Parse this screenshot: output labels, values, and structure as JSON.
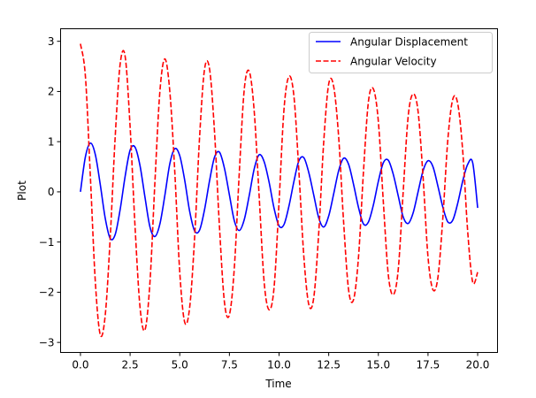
{
  "chart_data": {
    "type": "line",
    "xlabel": "Time",
    "ylabel": "Plot",
    "xlim": [
      -1.0,
      21.0
    ],
    "ylim": [
      -3.2,
      3.25
    ],
    "xticks": [
      0.0,
      2.5,
      5.0,
      7.5,
      10.0,
      12.5,
      15.0,
      17.5,
      20.0
    ],
    "xtick_labels": [
      "0.0",
      "2.5",
      "5.0",
      "7.5",
      "10.0",
      "12.5",
      "15.0",
      "17.5",
      "20.0"
    ],
    "yticks": [
      -3,
      -2,
      -1,
      0,
      1,
      2,
      3
    ],
    "ytick_labels": [
      "−3",
      "−2",
      "−1",
      "0",
      "1",
      "2",
      "3"
    ],
    "grid": false,
    "legend_position": "top-right",
    "series": [
      {
        "name": "Angular Displacement",
        "color": "#0000ff",
        "style": "solid",
        "x": [
          0.0,
          0.25,
          0.5,
          0.75,
          1.0,
          1.25,
          1.5,
          1.75,
          2.0,
          2.25,
          2.5,
          2.75,
          3.0,
          3.25,
          3.5,
          3.75,
          4.0,
          4.25,
          4.5,
          4.75,
          5.0,
          5.25,
          5.5,
          5.75,
          6.0,
          6.25,
          6.5,
          6.75,
          7.0,
          7.25,
          7.5,
          7.75,
          8.0,
          8.25,
          8.5,
          8.75,
          9.0,
          9.25,
          9.5,
          9.75,
          10.0,
          10.25,
          10.5,
          10.75,
          11.0,
          11.25,
          11.5,
          11.75,
          12.0,
          12.25,
          12.5,
          12.75,
          13.0,
          13.25,
          13.5,
          13.75,
          14.0,
          14.25,
          14.5,
          14.75,
          15.0,
          15.25,
          15.5,
          15.75,
          16.0,
          16.25,
          16.5,
          16.75,
          17.0,
          17.25,
          17.5,
          17.75,
          18.0,
          18.25,
          18.5,
          18.75,
          19.0,
          19.25,
          19.5,
          19.75,
          20.0
        ],
        "y": [
          0.0,
          0.7,
          0.97,
          0.74,
          0.14,
          -0.53,
          -0.93,
          -0.85,
          -0.35,
          0.31,
          0.83,
          0.89,
          0.52,
          -0.11,
          -0.7,
          -0.89,
          -0.64,
          -0.07,
          0.56,
          0.86,
          0.72,
          0.23,
          -0.39,
          -0.78,
          -0.76,
          -0.35,
          0.22,
          0.69,
          0.79,
          0.47,
          -0.06,
          -0.58,
          -0.77,
          -0.55,
          -0.07,
          0.46,
          0.74,
          0.6,
          0.19,
          -0.33,
          -0.68,
          -0.65,
          -0.28,
          0.21,
          0.62,
          0.68,
          0.38,
          -0.07,
          -0.52,
          -0.7,
          -0.48,
          -0.04,
          0.42,
          0.67,
          0.55,
          0.15,
          -0.31,
          -0.64,
          -0.6,
          -0.26,
          0.21,
          0.58,
          0.63,
          0.35,
          -0.08,
          -0.5,
          -0.63,
          -0.42,
          0.0,
          0.42,
          0.62,
          0.5,
          0.11,
          -0.31,
          -0.6,
          -0.56,
          -0.22,
          0.22,
          0.55,
          0.58,
          -0.32
        ]
      },
      {
        "name": "Angular Velocity",
        "color": "#ff0000",
        "style": "dashed",
        "x": [
          0.0,
          0.25,
          0.5,
          0.75,
          1.0,
          1.25,
          1.5,
          1.75,
          2.0,
          2.25,
          2.5,
          2.75,
          3.0,
          3.25,
          3.5,
          3.75,
          4.0,
          4.25,
          4.5,
          4.75,
          5.0,
          5.25,
          5.5,
          5.75,
          6.0,
          6.25,
          6.5,
          6.75,
          7.0,
          7.25,
          7.5,
          7.75,
          8.0,
          8.25,
          8.5,
          8.75,
          9.0,
          9.25,
          9.5,
          9.75,
          10.0,
          10.25,
          10.5,
          10.75,
          11.0,
          11.25,
          11.5,
          11.75,
          12.0,
          12.25,
          12.5,
          12.75,
          13.0,
          13.25,
          13.5,
          13.75,
          14.0,
          14.25,
          14.5,
          14.75,
          15.0,
          15.25,
          15.5,
          15.75,
          16.0,
          16.25,
          16.5,
          16.75,
          17.0,
          17.25,
          17.5,
          17.75,
          18.0,
          18.25,
          18.5,
          18.75,
          19.0,
          19.25,
          19.5,
          19.75,
          20.0
        ],
        "y": [
          2.95,
          2.3,
          0.3,
          -1.8,
          -2.85,
          -2.45,
          -0.9,
          1.1,
          2.55,
          2.7,
          1.3,
          -0.7,
          -2.3,
          -2.75,
          -1.8,
          0.2,
          2.0,
          2.65,
          2.0,
          0.4,
          -1.6,
          -2.6,
          -2.3,
          -0.9,
          1.1,
          2.45,
          2.45,
          1.2,
          -0.7,
          -2.2,
          -2.45,
          -1.5,
          0.4,
          2.05,
          2.4,
          1.6,
          -0.1,
          -1.8,
          -2.35,
          -1.9,
          -0.2,
          1.65,
          2.3,
          1.9,
          0.4,
          -1.3,
          -2.25,
          -2.1,
          -0.8,
          1.0,
          2.15,
          2.1,
          1.1,
          -0.6,
          -1.95,
          -2.15,
          -1.3,
          0.4,
          1.8,
          2.05,
          1.4,
          -0.2,
          -1.65,
          -2.05,
          -1.55,
          0.0,
          1.5,
          1.95,
          1.6,
          0.3,
          -1.3,
          -1.95,
          -1.7,
          -0.5,
          1.05,
          1.85,
          1.75,
          0.8,
          -0.8,
          -1.8,
          -1.6
        ]
      }
    ]
  }
}
